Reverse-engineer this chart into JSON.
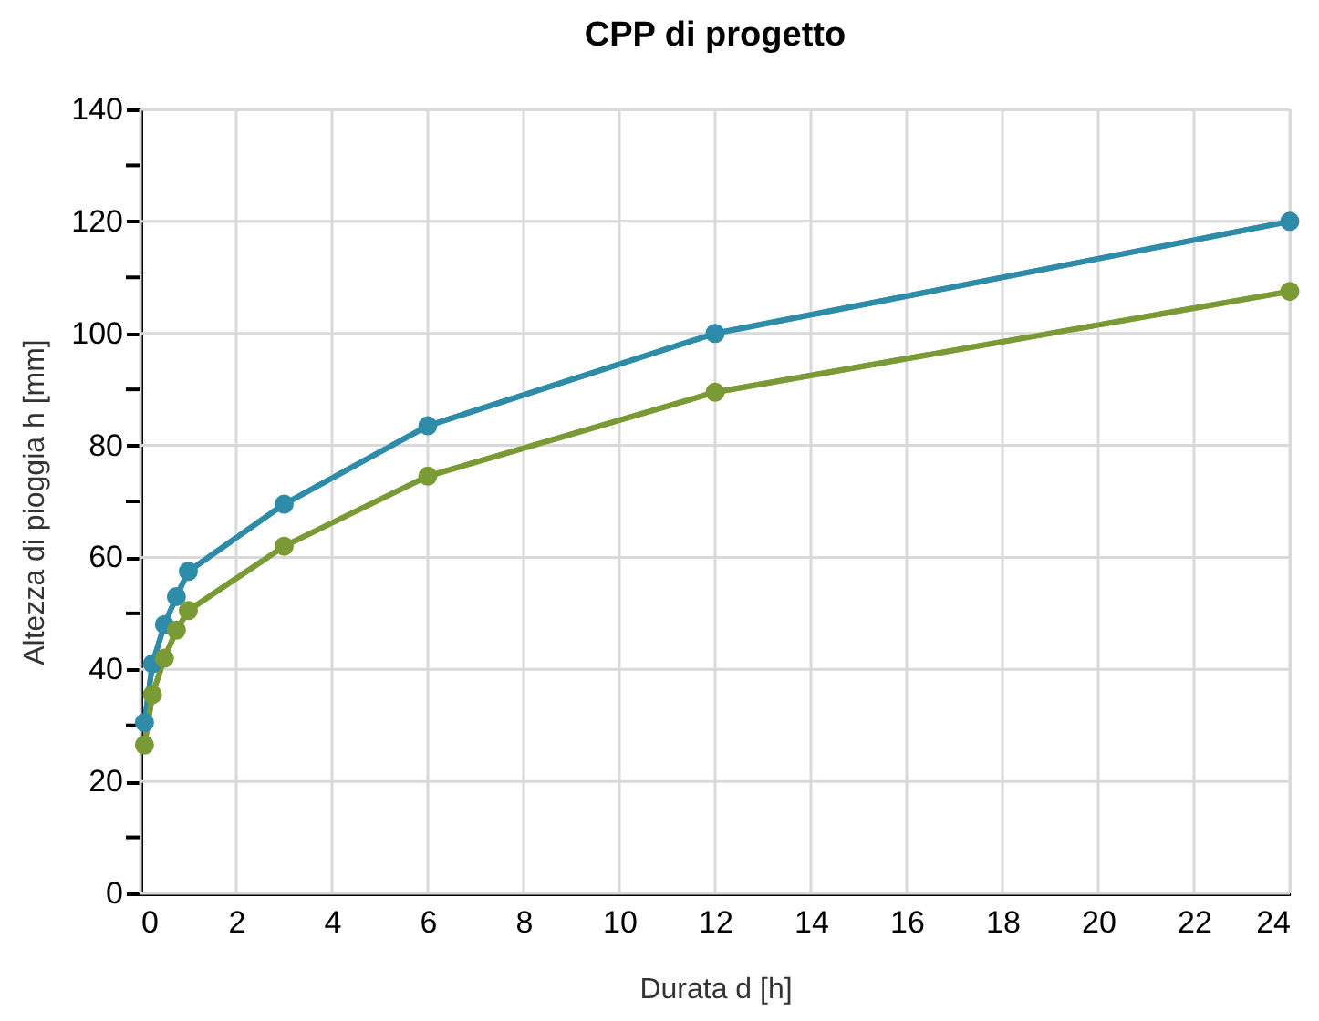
{
  "chart_data": {
    "type": "line",
    "title": "CPP di progetto",
    "xlabel": "Durata d [h]",
    "ylabel": "Altezza di pioggia h [mm]",
    "x": [
      0.0833,
      0.25,
      0.5,
      0.75,
      1,
      3,
      6,
      12,
      24
    ],
    "series": [
      {
        "color": "#2e8ca8",
        "values": [
          30.5,
          41,
          48,
          53,
          57.5,
          69.5,
          83.5,
          100,
          120
        ]
      },
      {
        "color": "#7a9a35",
        "values": [
          26.5,
          35.5,
          42,
          47,
          50.5,
          62,
          74.5,
          89.5,
          107.5
        ]
      }
    ],
    "xlim": [
      0,
      24
    ],
    "xticks": [
      0,
      2,
      4,
      6,
      8,
      10,
      12,
      14,
      16,
      18,
      20,
      22,
      24
    ],
    "ylim": [
      0,
      140
    ],
    "yticks": [
      0,
      {
        "value": 10,
        "label": null
      },
      20,
      {
        "value": 30,
        "label": null
      },
      40,
      {
        "value": 50,
        "label": null
      },
      60,
      {
        "value": 70,
        "label": null
      },
      80,
      {
        "value": 90,
        "label": null
      },
      100,
      {
        "value": 110,
        "label": null
      },
      120,
      {
        "value": 130,
        "label": null
      },
      140
    ],
    "grid": true,
    "marker": "circle",
    "line_style": "solid",
    "legend": false
  }
}
